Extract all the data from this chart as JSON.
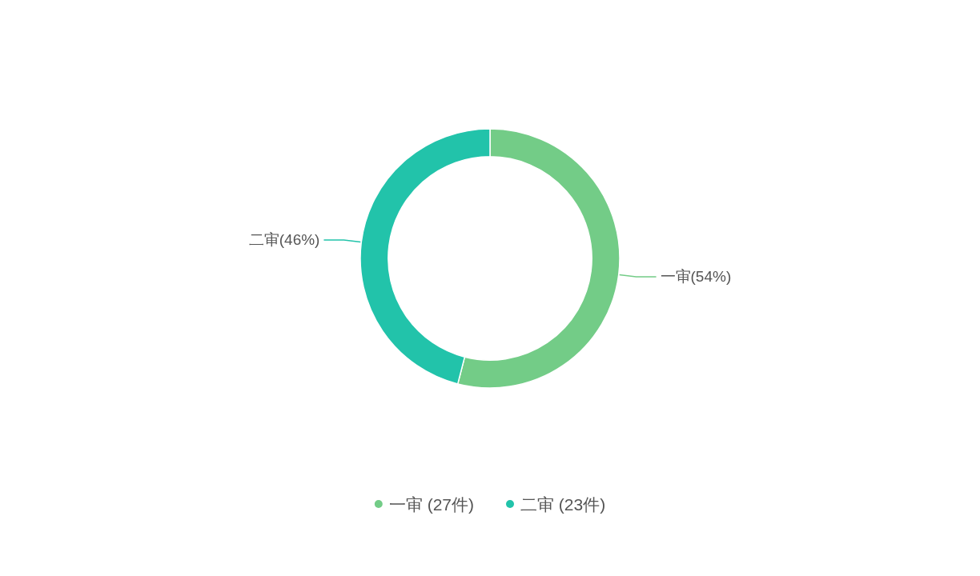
{
  "chart_data": {
    "type": "donut",
    "categories": [
      "一审  (27件)",
      "二审  (23件)"
    ],
    "values": [
      27,
      23
    ],
    "colors": [
      "#73cc87",
      "#22c3aa"
    ],
    "value_labels": [
      "一审(54%)",
      "二审(46%)"
    ],
    "legend": "bottom"
  }
}
